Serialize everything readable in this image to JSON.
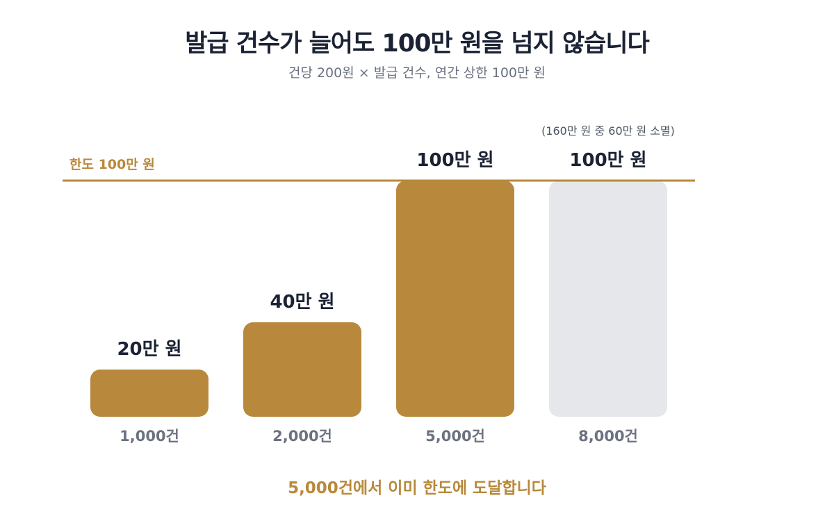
{
  "header": {
    "title": "발급 건수가 늘어도 100만 원을 넘지 않습니다",
    "subtitle": "건당 200원 × 발급 건수, 연간 상한 100만 원"
  },
  "chart_data": {
    "type": "bar",
    "categories": [
      "1,000건",
      "2,000건",
      "5,000건",
      "8,000건"
    ],
    "values": [
      20,
      40,
      100,
      100
    ],
    "value_labels": [
      "20만 원",
      "40만 원",
      "100만 원",
      "100만 원"
    ],
    "unit": "만 원",
    "ylim": [
      0,
      100
    ],
    "cap": {
      "value": 100,
      "label": "한도 100만 원"
    },
    "annotations": [
      {
        "category_index": 3,
        "text": "(160만 원 중 60만 원 소멸)"
      }
    ],
    "bar_colors": [
      "#b8893c",
      "#b8893c",
      "#b8893c",
      "#e5e7eb"
    ],
    "colors": {
      "accent": "#b8893c",
      "faded_bar": "#e5e7eb",
      "value_text": "#1a2233",
      "category_text": "#6b7280",
      "annotation_text": "#4b5563"
    },
    "grid": false,
    "legend": "none"
  },
  "footer": {
    "takeaway": "5,000건에서 이미 한도에 도달합니다"
  }
}
